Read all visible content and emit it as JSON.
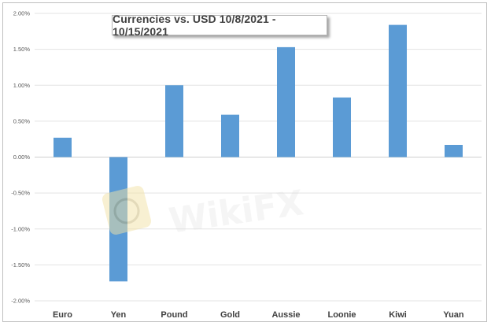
{
  "chart_data": {
    "type": "bar",
    "title": "Currencies vs. USD 10/8/2021 - 10/15/2021",
    "categories": [
      "Euro",
      "Yen",
      "Pound",
      "Gold",
      "Aussie",
      "Loonie",
      "Kiwi",
      "Yuan"
    ],
    "values": [
      0.27,
      -1.73,
      1.0,
      0.59,
      1.53,
      0.83,
      1.84,
      0.17
    ],
    "value_unit": "%",
    "ylim": [
      -2.0,
      2.0
    ],
    "yticks": [
      "2.00%",
      "1.50%",
      "1.00%",
      "0.50%",
      "0.00%",
      "-0.50%",
      "-1.00%",
      "-1.50%",
      "-2.00%"
    ],
    "ytick_values": [
      2.0,
      1.5,
      1.0,
      0.5,
      0.0,
      -0.5,
      -1.0,
      -1.5,
      -2.0
    ],
    "grid": true,
    "legend": "none",
    "bar_color": "#5b9bd5"
  },
  "watermark": {
    "text": "WikiFX"
  }
}
